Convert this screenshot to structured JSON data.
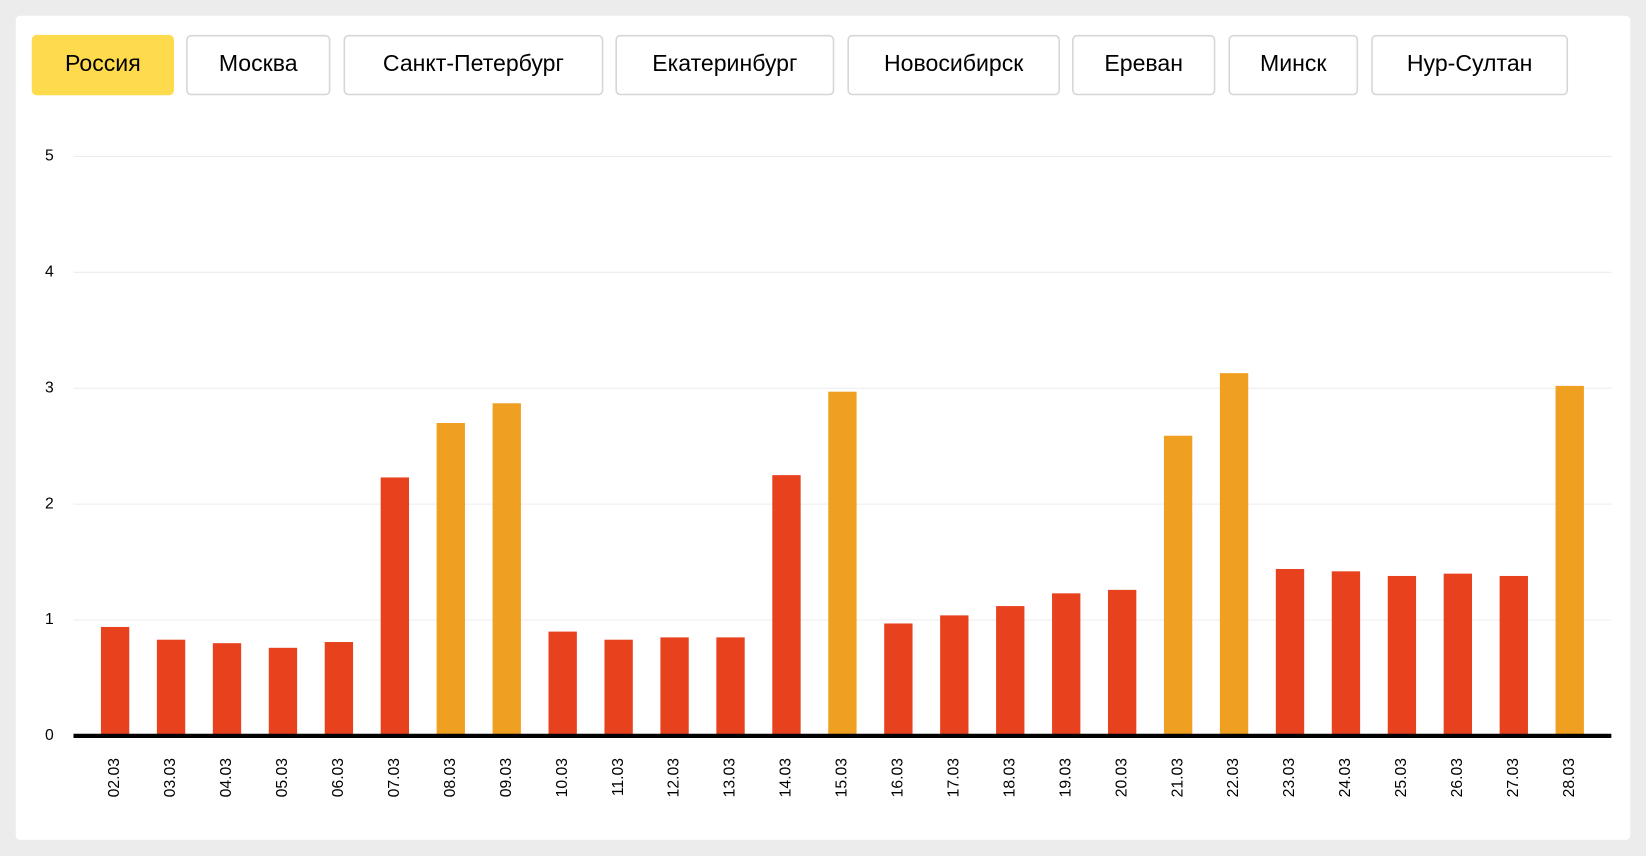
{
  "tabs": [
    "Россия",
    "Москва",
    "Санкт-Петербург",
    "Екатеринбург",
    "Новосибирск",
    "Ереван",
    "Минск",
    "Нур-Султан"
  ],
  "selected_tab": 0,
  "chart_data": {
    "type": "bar",
    "categories": [
      "02.03",
      "03.03",
      "04.03",
      "05.03",
      "06.03",
      "07.03",
      "08.03",
      "09.03",
      "10.03",
      "11.03",
      "12.03",
      "13.03",
      "14.03",
      "15.03",
      "16.03",
      "17.03",
      "18.03",
      "19.03",
      "20.03",
      "21.03",
      "22.03",
      "23.03",
      "24.03",
      "25.03",
      "26.03",
      "27.03",
      "28.03"
    ],
    "values": [
      0.94,
      0.83,
      0.8,
      0.76,
      0.81,
      2.23,
      2.7,
      2.87,
      0.9,
      0.83,
      0.85,
      0.85,
      2.25,
      2.97,
      0.97,
      1.04,
      1.12,
      1.23,
      1.26,
      2.59,
      3.13,
      1.44,
      1.42,
      1.38,
      1.4,
      1.38,
      3.02
    ],
    "colors": [
      "#e8411e",
      "#e8411e",
      "#e8411e",
      "#e8411e",
      "#e8411e",
      "#e8411e",
      "#f0a020",
      "#f0a020",
      "#e8411e",
      "#e8411e",
      "#e8411e",
      "#e8411e",
      "#e8411e",
      "#f0a020",
      "#e8411e",
      "#e8411e",
      "#e8411e",
      "#e8411e",
      "#e8411e",
      "#f0a020",
      "#f0a020",
      "#e8411e",
      "#e8411e",
      "#e8411e",
      "#e8411e",
      "#e8411e",
      "#f0a020"
    ],
    "ylim": [
      0,
      5
    ],
    "yticks": [
      0,
      1,
      2,
      3,
      4,
      5
    ],
    "grid": true
  }
}
